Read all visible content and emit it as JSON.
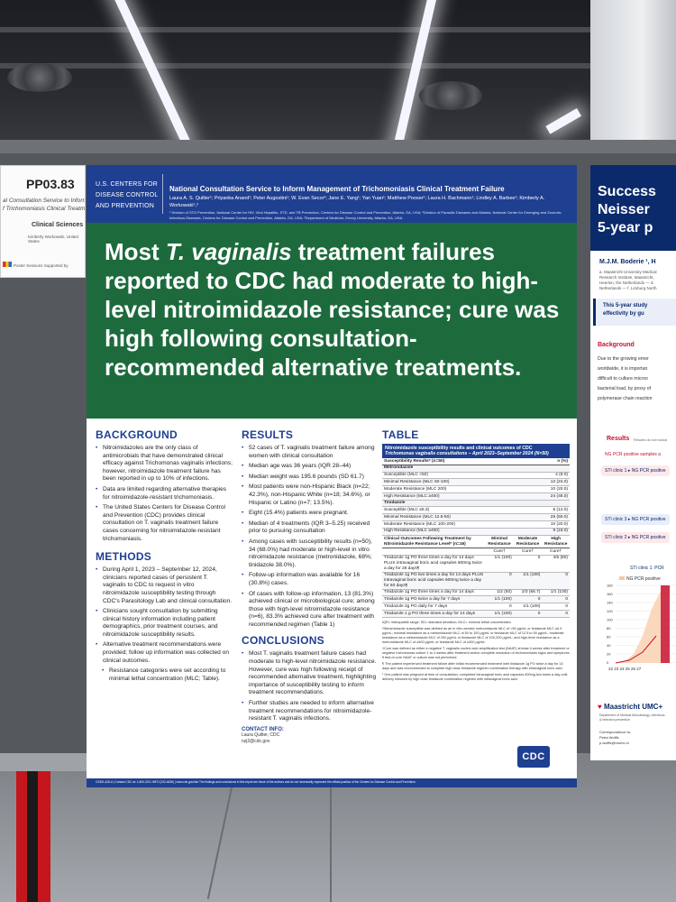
{
  "left_poster": {
    "id": "PP03.83",
    "subtitle_1": "al Consultation Service to Inform",
    "subtitle_2": "f Trichomoniasis Clinical Treatmen",
    "category": "Clinical Sciences",
    "authors": "Kimberly Workowski, United States",
    "footer": "Poster Sessions Supported by"
  },
  "right_poster": {
    "title_1": "Success",
    "title_2": "Neisser",
    "title_3": "5-year p",
    "author": "M.J.M. Boderie ¹, H",
    "affiliation": "a. Maastricht University Medical\nResearch Institute, Maastricht,\nHeerlen, the Netherlands — d.\nNetherlands — f. Limburg North",
    "box_text": "This 5-year study\neffectivity by gu",
    "background_title": "Background",
    "background_text": "Due to the growing emer\nworldwide, it is importan\ndifficult to culture microo\nbacterial load, by proxy of\npolymerase chain reaction",
    "results_title": "Results",
    "results_note": "Results do not includ",
    "ng_label": "NG PCR positive samples a",
    "pill_1": "STI clinic 1 ▸ NG PCR positive",
    "pill_2": "STI clinic 2 ▸ NG PCR positive",
    "pill_3": "STI clinic 3 ▸ NG PCR positive",
    "chart_label": "STI clinic 1: PCR",
    "chart_legend": "NG PCR positive",
    "chart_ticks": [
      "180",
      "160",
      "140",
      "120",
      "100",
      "80",
      "60",
      "40",
      "20",
      "0"
    ],
    "chart_xticks": "22 23 24 25 26 27",
    "institution": "Maastricht UMC+",
    "institution_sub": "Department of Medical Microbiology, Infectious\n& Infection prevention",
    "corr_title": "Correspondence to:",
    "corr_name": "Petra Wolffs",
    "corr_email": "p.wolffs@mumc.nl"
  },
  "poster": {
    "org": "U.S. CENTERS FOR DISEASE CONTROL AND PREVENTION",
    "title": "National Consultation Service to Inform Management of Trichomoniasis Clinical Treatment Failure",
    "authors": "Laura A. S. Quilter¹; Priyanka Anand¹; Peter Augostini¹; W. Evan Secor²; Jane E. Yang¹; Yan Yuan¹; Matthew Pooser¹; Laura H. Bachmann¹; Lindley A. Barbee¹; Kimberly A. Workowski¹,³",
    "affiliations": "¹ Division of STD Prevention, National Center for HIV, Viral Hepatitis, STD, and TB Prevention, Centers for Disease Control and Prevention, Atlanta, GA, USA; ²Division of Parasitic Diseases and Malaria, National Center for Emerging and Zoonotic Infectious Diseases, Centers for Disease Control and Prevention, Atlanta, GA, USA; ³Department of Medicine, Emory University, Atlanta, GA, USA",
    "headline_pre": "Most ",
    "headline_italic": "T. vaginalis",
    "headline_post": " treatment failures reported to CDC had moderate to high-level nitroimidazole resistance; cure was high following consultation-recommended alternative treatments.",
    "background": {
      "title": "BACKGROUND",
      "items": [
        "Nitroimidazoles are the only class of antimicrobials that have demonstrated clinical efficacy against Trichomonas vaginalis infections; however, nitroimidazole treatment failure has been reported in up to 10% of infections.",
        "Data are limited regarding alternative therapies for nitroimidazole-resistant trichomoniasis.",
        "The United States Centers for Disease Control and Prevention (CDC) provides clinical consultation on T. vaginalis treatment failure cases concerning for nitroimidazole-resistant trichomoniasis."
      ]
    },
    "methods": {
      "title": "METHODS",
      "items": [
        "During April 1, 2023 – September 12, 2024, clinicians reported cases of persistent T. vaginalis to CDC to request in vitro nitroimidazole susceptibility testing through CDC's Parasitology Lab and clinical consultation.",
        "Clinicians sought consultation by submitting clinical history information including patient demographics, prior treatment courses, and nitroimidazole susceptibility results.",
        "Alternative treatment recommendations were provided; follow up information was collected on clinical outcomes."
      ],
      "sub_items": [
        "Resistance categories were set according to minimal lethal concentration (MLC; Table)."
      ]
    },
    "results": {
      "title": "RESULTS",
      "items": [
        "52 cases of T. vaginalis treatment failure among women with clinical consultation",
        "Median age was 36 years (IQR 28–44)",
        "Median weight was 195.6 pounds (SD 61.7)",
        "Most patients were non-Hispanic Black (n=22; 42.3%), non-Hispanic White (n=18; 34.6%), or Hispanic or Latino (n=7; 13.5%).",
        "Eight (15.4%) patients were pregnant.",
        "Median of 4 treatments (IQR 3–5.25) received prior to pursuing consultation",
        "Among cases with susceptibility results (n=50), 34 (68.0%) had moderate or high-level in vitro nitroimidazole resistance (metronidazole, 68%; tinidazole 38.0%).",
        "Follow-up information was available for 16 (30.8%) cases.",
        "Of cases with follow-up information, 13 (81.3%) achieved clinical or microbiological cure; among those with high-level nitroimidazole resistance (n=6), 83.3% achieved cure after treatment with recommended regimen (Table 1)"
      ]
    },
    "conclusions": {
      "title": "CONCLUSIONS",
      "items": [
        "Most T. vaginalis treatment failure cases had moderate to high-level nitroimidazole resistance. However, cure was high following receipt of recommended alternative treatment, highlighting importance of susceptibility testing to inform treatment recommendations.",
        "Further studies are needed to inform alternative treatment recommendations for nitroimidazole-resistant T. vaginalis infections."
      ]
    },
    "contact": {
      "title": "CONTACT INFO:",
      "name": "Laura Quilter, CDC",
      "email": "nzj2@cdc.gov"
    },
    "table": {
      "title": "TABLE",
      "caption_1": "Nitroimidazole susceptibility results and clinical outcomes of CDC",
      "caption_2": "Trichomonas vaginalis consultations – April 2023–September 2024 (N=50)",
      "head_label": "Susceptibility Results* (n=50)",
      "head_value": "n (%)",
      "groups": [
        {
          "name": "Metronidazole",
          "rows": [
            {
              "label": "Susceptible (MLC <50)",
              "value": "4 (8.0)"
            },
            {
              "label": "Minimal Resistance (MLC 50-100)",
              "value": "12 (24.0)"
            },
            {
              "label": "Moderate Resistance (MLC 200)",
              "value": "10 (20.0)"
            },
            {
              "label": "High Resistance (MLC ≥400)",
              "value": "24 (48.0)"
            }
          ]
        },
        {
          "name": "Tinidazole",
          "rows": [
            {
              "label": "Susceptible (MLC ≤6.3)",
              "value": "6 (12.0)"
            },
            {
              "label": "Minimal Resistance (MLC 12.5-50)",
              "value": "25 (50.0)"
            },
            {
              "label": "Moderate Resistance (MLC 100-200)",
              "value": "10 (20.0)"
            },
            {
              "label": "High Resistance (MLC ≥400)",
              "value": "9 (18.0)"
            }
          ]
        }
      ],
      "outcome_label": "Clinical Outcomes Following Treatment by Nitroimidazole Resistance Level* (n=16)",
      "col_minimal": "Minimal Resistance",
      "col_moderate": "Moderate Resistance",
      "col_high": "High Resistance",
      "cure_label": "Cure†",
      "outcomes": [
        {
          "label": "Tinidazole 1g PO three times a day for 14 days PLUS intravaginal boric acid capsules 600mg twice a day for 28 days¶",
          "minimal": "1/1 (100)",
          "moderate": "0",
          "high": "4/5 (80)"
        },
        {
          "label": "Tinidazole 1g PO two times a day for 14 days PLUS intravaginal boric acid capsules 600mg twice a day for 60 days¶",
          "minimal": "0",
          "moderate": "1/1 (100)",
          "high": "0"
        },
        {
          "label": "Tinidazole 1g PO three times a day for 14 days",
          "minimal": "1/2 (50)",
          "moderate": "2/3 (66.7)",
          "high": "1/1 (100)"
        },
        {
          "label": "Tinidazole 1g PO twice a day for 7 days",
          "minimal": "1/1 (100)",
          "moderate": "0",
          "high": "0"
        },
        {
          "label": "Tinidazole 2g PO daily for 7 days",
          "minimal": "0",
          "moderate": "1/1 (100)",
          "high": "0"
        },
        {
          "label": "Tinidazole 1 g PO three times a day for 14 days",
          "minimal": "1/1 (100)",
          "moderate": "0",
          "high": "0"
        }
      ],
      "notes": [
        "IQR= interquartile range; SD= standard deviation; MLC= minimal lethal concentration",
        "*Nitroimidazole susceptible was defined as an in vitro aerobic metronidazole MLC of <50 µg/mL or tinidazole MLC ≤6.3 µg/mL; minimal resistance as a metronidazole MLC of 50 to 100 µg/mL or tinidazole MLC of 12.5 to 50 µg/mL; moderate resistance as a metronidazole MLC of 200 µg/mL or tinidazole MLC of 100-200 µg/mL; and high-level resistance as a metronidazole MLC of ≥400 µg/mL or tinidazole MLC of ≥400 µg/mL.",
        "†Cure was defined as either a negative T. vaginalis nucleic acid amplification test (NAAT) at least 4 weeks after treatment or negative trichomonas culture 1 to 4 weeks after treatment and/or complete resolution of trichomoniasis signs and symptoms if test-of-cure NAAT or culture was not performed.",
        "¶ The patient experienced treatment failure after initial recommended treatment with tinidazole 1g PO twice a day for 14 days and was recommended to complete high dose tinidazole regimen combination therapy with intravaginal boric acid.",
        "¹ One patient was pregnant at time of consultation; completed intravaginal boric acid capsules 600mg two times a day until delivery followed by high dose tinidazole combination regimen with intravaginal boric acid."
      ]
    },
    "cdc_logo": "CDC",
    "footer": "CS351,426-A | Contact CDC at: 1-800-CDC-INFO (232-4636) | www.cdc.gov/info  The findings and conclusions in this report are those of the authors and do not necessarily represent the official position of the Centers for Disease Control and Prevention."
  }
}
